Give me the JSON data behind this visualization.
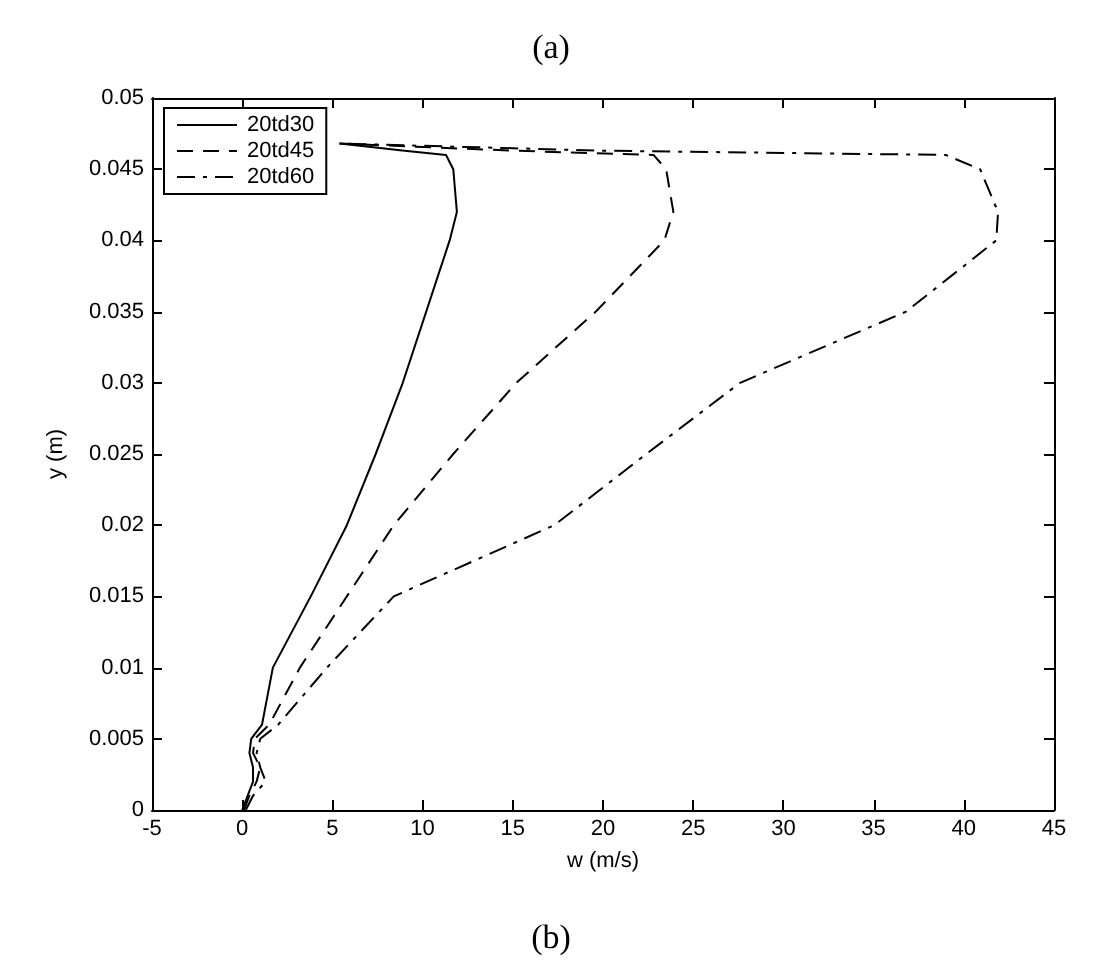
{
  "chart_data": {
    "type": "line",
    "title": "(a)",
    "xlabel": "w (m/s)",
    "ylabel": "y (m)",
    "annotations": [
      "(b)"
    ],
    "xlim": [
      -5,
      45
    ],
    "xticks": [
      -5,
      0,
      5,
      10,
      15,
      20,
      25,
      30,
      35,
      40,
      45
    ],
    "ylim": [
      0,
      0.05
    ],
    "yticks": [
      0,
      0.005,
      0.01,
      0.015,
      0.02,
      0.025,
      0.03,
      0.035,
      0.04,
      0.045,
      0.05
    ],
    "grid": false,
    "legend": "top left",
    "marker": "none",
    "series": [
      {
        "name": "20td30",
        "color": "#000000",
        "line_style": "solid",
        "x": [
          0,
          0.3,
          0.6,
          0.6,
          0.4,
          0.5,
          1.1,
          1.7,
          3.8,
          5.8,
          7.4,
          8.9,
          10.2,
          11.5,
          11.9,
          11.7,
          11.3,
          9,
          5.4
        ],
        "values": [
          0,
          0.001,
          0.002,
          0.003,
          0.004,
          0.005,
          0.006,
          0.01,
          0.015,
          0.02,
          0.025,
          0.03,
          0.035,
          0.04,
          0.042,
          0.045,
          0.046,
          0.0463,
          0.0468
        ]
      },
      {
        "name": "20td45",
        "color": "#000000",
        "line_style": "dashed",
        "x": [
          0.1,
          0.4,
          0.8,
          1.0,
          0.6,
          0.7,
          1.5,
          3.2,
          5.8,
          8.4,
          11.7,
          15.2,
          19.6,
          23.4,
          23.9,
          23.5,
          22.8,
          15,
          5.4
        ],
        "values": [
          0,
          0.001,
          0.002,
          0.003,
          0.004,
          0.005,
          0.006,
          0.01,
          0.015,
          0.02,
          0.025,
          0.03,
          0.035,
          0.04,
          0.042,
          0.045,
          0.046,
          0.0463,
          0.0468
        ]
      },
      {
        "name": "20td60",
        "color": "#000000",
        "line_style": "dashdot",
        "x": [
          0.2,
          0.6,
          1.3,
          1.0,
          0.8,
          1.0,
          2.0,
          4.7,
          8.4,
          17.3,
          22.4,
          27.6,
          36.8,
          41.8,
          41.9,
          40.9,
          39.0,
          20,
          5.4
        ],
        "values": [
          0,
          0.001,
          0.002,
          0.003,
          0.004,
          0.005,
          0.006,
          0.01,
          0.015,
          0.02,
          0.025,
          0.03,
          0.035,
          0.04,
          0.042,
          0.045,
          0.046,
          0.0463,
          0.0468
        ]
      }
    ]
  }
}
